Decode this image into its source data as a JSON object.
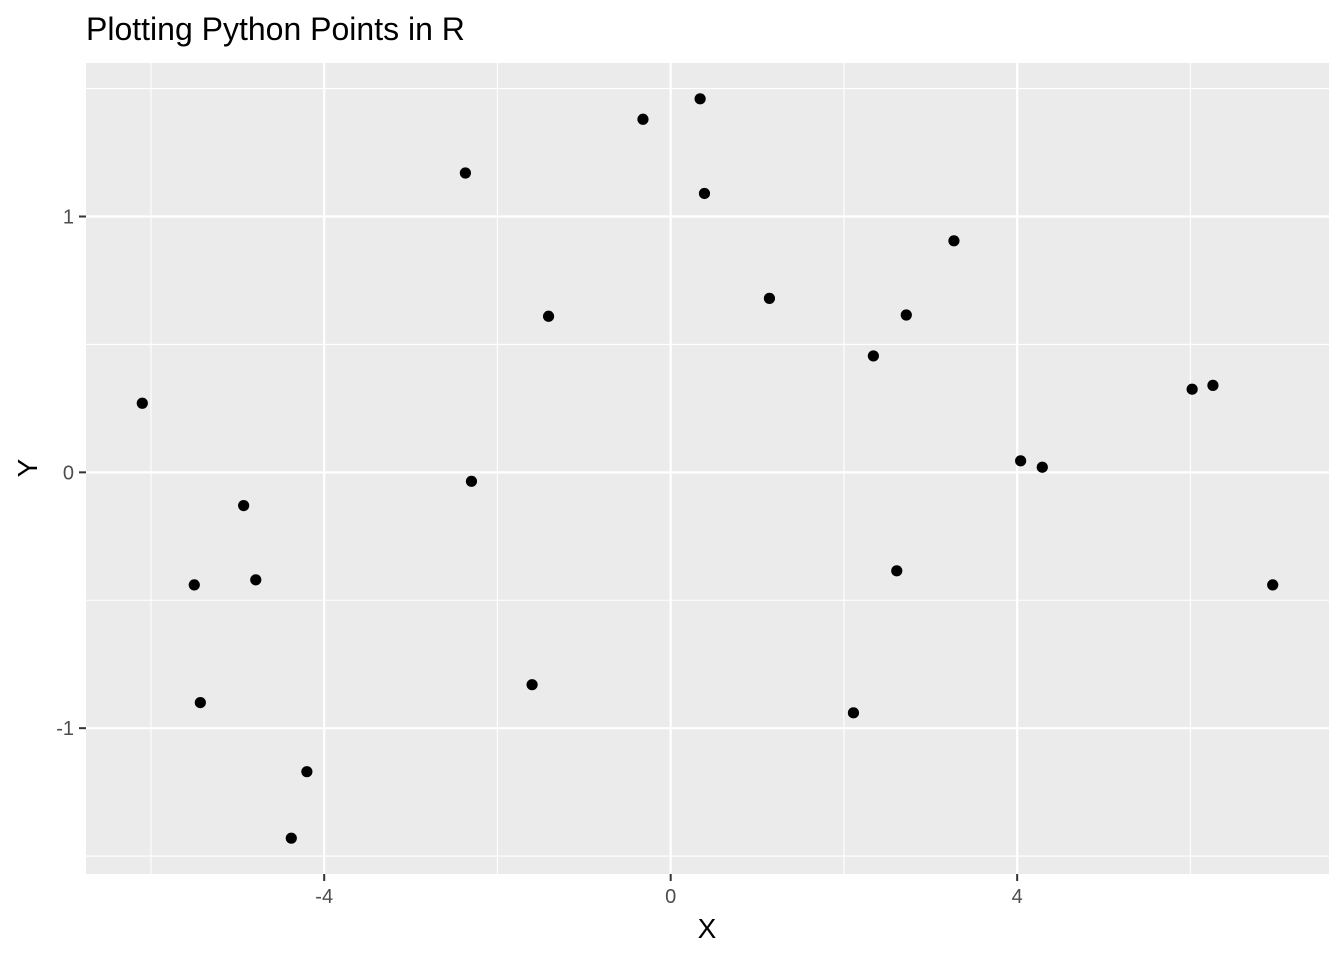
{
  "chart_data": {
    "type": "scatter",
    "title": "Plotting Python Points in R",
    "xlabel": "X",
    "ylabel": "Y",
    "xlim": [
      -6.75,
      7.6
    ],
    "ylim": [
      -1.57,
      1.6
    ],
    "x_ticks": [
      -4,
      0,
      4
    ],
    "x_minor_ticks": [
      -6,
      -2,
      2,
      6
    ],
    "y_ticks": [
      -1,
      0,
      1
    ],
    "y_minor_ticks": [
      -1.5,
      -0.5,
      0.5,
      1.5
    ],
    "x_tick_labels": [
      "-4",
      "0",
      "4"
    ],
    "y_tick_labels": [
      "-1",
      "0",
      "1"
    ],
    "grid": true,
    "theme": "ggplot2 default (gray panel, white grid)",
    "colors": {
      "panel": "#ebebeb",
      "grid": "#ffffff",
      "point": "#000000",
      "tick_text": "#4d4d4d",
      "tick_mark": "#333333"
    },
    "points": [
      {
        "x": -6.1,
        "y": 0.27
      },
      {
        "x": -5.5,
        "y": -0.44
      },
      {
        "x": -5.43,
        "y": -0.9
      },
      {
        "x": -4.93,
        "y": -0.13
      },
      {
        "x": -4.79,
        "y": -0.42
      },
      {
        "x": -4.38,
        "y": -1.43
      },
      {
        "x": -4.2,
        "y": -1.17
      },
      {
        "x": -2.37,
        "y": 1.17
      },
      {
        "x": -2.3,
        "y": -0.035
      },
      {
        "x": -1.6,
        "y": -0.83
      },
      {
        "x": -1.41,
        "y": 0.61
      },
      {
        "x": -0.32,
        "y": 1.38
      },
      {
        "x": 0.34,
        "y": 1.46
      },
      {
        "x": 0.39,
        "y": 1.09
      },
      {
        "x": 1.14,
        "y": 0.68
      },
      {
        "x": 2.11,
        "y": -0.94
      },
      {
        "x": 2.34,
        "y": 0.455
      },
      {
        "x": 2.61,
        "y": -0.385
      },
      {
        "x": 2.72,
        "y": 0.615
      },
      {
        "x": 3.27,
        "y": 0.905
      },
      {
        "x": 4.04,
        "y": 0.045
      },
      {
        "x": 4.29,
        "y": 0.02
      },
      {
        "x": 6.02,
        "y": 0.325
      },
      {
        "x": 6.26,
        "y": 0.34
      },
      {
        "x": 6.95,
        "y": -0.44
      }
    ]
  }
}
